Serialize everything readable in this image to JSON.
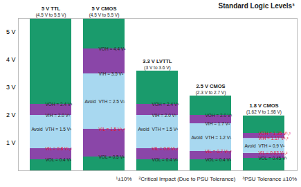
{
  "chart_data": {
    "type": "bar",
    "title": "Standard Logic Levels³",
    "ylim": [
      0,
      5.5
    ],
    "yticks": [
      {
        "value": 1,
        "label": "1 V"
      },
      {
        "value": 2,
        "label": "2 V"
      },
      {
        "value": 3,
        "label": "3 V"
      },
      {
        "value": 4,
        "label": "4 V"
      },
      {
        "value": 5,
        "label": "5 V"
      }
    ],
    "tick_labels": "y",
    "colors": [
      "#1a9b6c",
      "#8a46a8",
      "#a8d8f0",
      "#8a46a8",
      "#1a9b6c"
    ],
    "avoid_label": "Avoid",
    "columns": [
      {
        "name": "5 V TTL",
        "subtitle": "(4.5 V to 5.5 V)",
        "top": 5.5,
        "levels": [
          {
            "label": "VOL = 0.4 V¹",
            "value": 0.4,
            "color": "#222222"
          },
          {
            "label": "VIL = 0.8 V¹,²",
            "value": 0.8,
            "color": "#e8112d"
          },
          {
            "label": "VTH = 1.5 V¹",
            "value": 1.5,
            "color": "#222222"
          },
          {
            "label": "VIH = 2.0 V¹",
            "value": 2.0,
            "color": "#222222"
          },
          {
            "label": "VOH = 2.4 V¹",
            "value": 2.4,
            "color": "#222222"
          }
        ]
      },
      {
        "name": "5 V CMOS",
        "subtitle": "(4.5 V to 5.5 V)",
        "top": 5.5,
        "levels": [
          {
            "label": "VOL = 0.5 V¹",
            "value": 0.5,
            "color": "#222222"
          },
          {
            "label": "VIL = 1.5 V¹,²",
            "value": 1.5,
            "color": "#e8112d"
          },
          {
            "label": "VTH = 2.5 V¹",
            "value": 2.5,
            "color": "#222222"
          },
          {
            "label": "VIH = 3.5 V¹",
            "value": 3.5,
            "color": "#222222"
          },
          {
            "label": "VOH = 4.4 V¹",
            "value": 4.4,
            "color": "#222222"
          }
        ]
      },
      {
        "name": "3.3 V LVTTL",
        "subtitle": "(3 V to 3.6 V)",
        "top": 3.6,
        "levels": [
          {
            "label": "VOL = 0.4 V¹",
            "value": 0.4,
            "color": "#222222"
          },
          {
            "label": "VIL = 0.8 V¹,²",
            "value": 0.8,
            "color": "#e8112d"
          },
          {
            "label": "VTH = 1.5 V¹",
            "value": 1.5,
            "color": "#222222"
          },
          {
            "label": "VIH = 2.0 V¹",
            "value": 2.0,
            "color": "#222222"
          },
          {
            "label": "VOH = 2.4 V¹",
            "value": 2.4,
            "color": "#222222"
          }
        ]
      },
      {
        "name": "2.5 V CMOS",
        "subtitle": "(2.3 V to 2.7 V)",
        "top": 2.7,
        "levels": [
          {
            "label": "VOL = 0.4 V¹",
            "value": 0.4,
            "color": "#222222"
          },
          {
            "label": "VIL = 0.7 V¹,²",
            "value": 0.7,
            "color": "#e8112d"
          },
          {
            "label": "VTH = 1.2 V¹",
            "value": 1.2,
            "color": "#222222"
          },
          {
            "label": "VIH = 1.7 V¹",
            "value": 1.7,
            "color": "#222222"
          },
          {
            "label": "VOH = 2.0 V¹",
            "value": 2.0,
            "color": "#222222"
          }
        ]
      },
      {
        "name": "1.8 V CMOS",
        "subtitle": "(1.62 V to 1.98 V)",
        "top": 1.98,
        "levels": [
          {
            "label": "VOL = 0.45 V¹",
            "value": 0.45,
            "color": "#222222"
          },
          {
            "label": "VIL = 0.63 V¹,²",
            "value": 0.63,
            "color": "#e8112d"
          },
          {
            "label": "VTH = 0.9 V¹",
            "value": 0.9,
            "color": "#222222"
          },
          {
            "label": "VIH = 1.17 V¹,²",
            "value": 1.17,
            "color": "#e8112d"
          },
          {
            "label": "VOH = 1.35 V¹,²",
            "value": 1.35,
            "color": "#e8112d"
          }
        ]
      }
    ],
    "footnotes": [
      "¹±10%",
      "²Critical Impact (Due to PSU Tolerance)",
      "³PSU Tolerance ±10%"
    ]
  }
}
